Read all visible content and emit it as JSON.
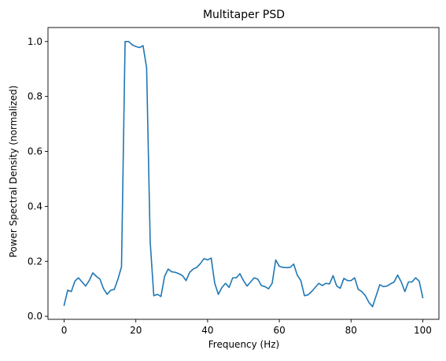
{
  "chart_data": {
    "type": "line",
    "title": "Multitaper PSD",
    "xlabel": "Frequency (Hz)",
    "ylabel": "Power Spectral Density (normalized)",
    "xlim": [
      -4.5,
      104.5
    ],
    "ylim": [
      -0.011,
      1.051
    ],
    "xticks": [
      0,
      20,
      40,
      60,
      80,
      100
    ],
    "xtick_labels": [
      "0",
      "20",
      "40",
      "60",
      "80",
      "100"
    ],
    "yticks": [
      0.0,
      0.2,
      0.4,
      0.6,
      0.8,
      1.0
    ],
    "ytick_labels": [
      "0.0",
      "0.2",
      "0.4",
      "0.6",
      "0.8",
      "1.0"
    ],
    "grid": false,
    "series": [
      {
        "color": "#1f77b4",
        "x": [
          0,
          1,
          2,
          3,
          4,
          5,
          6,
          7,
          8,
          9,
          10,
          11,
          12,
          13,
          14,
          15,
          16,
          17,
          18,
          19,
          20,
          21,
          22,
          23,
          24,
          25,
          26,
          27,
          28,
          29,
          30,
          31,
          32,
          33,
          34,
          35,
          36,
          37,
          38,
          39,
          40,
          41,
          42,
          43,
          44,
          45,
          46,
          47,
          48,
          49,
          50,
          51,
          52,
          53,
          54,
          55,
          56,
          57,
          58,
          59,
          60,
          61,
          62,
          63,
          64,
          65,
          66,
          67,
          68,
          69,
          70,
          71,
          72,
          73,
          74,
          75,
          76,
          77,
          78,
          79,
          80,
          81,
          82,
          83,
          84,
          85,
          86,
          87,
          88,
          89,
          90,
          91,
          92,
          93,
          94,
          95,
          96,
          97,
          98,
          99,
          100
        ],
        "y": [
          0.04,
          0.095,
          0.09,
          0.128,
          0.14,
          0.125,
          0.11,
          0.13,
          0.158,
          0.145,
          0.135,
          0.1,
          0.08,
          0.095,
          0.098,
          0.135,
          0.18,
          1.0,
          1.0,
          0.988,
          0.982,
          0.978,
          0.985,
          0.905,
          0.27,
          0.075,
          0.08,
          0.072,
          0.145,
          0.172,
          0.162,
          0.16,
          0.155,
          0.148,
          0.13,
          0.16,
          0.172,
          0.178,
          0.192,
          0.21,
          0.205,
          0.212,
          0.12,
          0.08,
          0.105,
          0.12,
          0.105,
          0.14,
          0.14,
          0.155,
          0.13,
          0.11,
          0.125,
          0.14,
          0.135,
          0.112,
          0.108,
          0.1,
          0.12,
          0.205,
          0.182,
          0.178,
          0.177,
          0.178,
          0.19,
          0.15,
          0.13,
          0.075,
          0.078,
          0.09,
          0.105,
          0.12,
          0.112,
          0.12,
          0.118,
          0.148,
          0.11,
          0.102,
          0.138,
          0.13,
          0.13,
          0.14,
          0.098,
          0.09,
          0.075,
          0.05,
          0.035,
          0.075,
          0.115,
          0.108,
          0.11,
          0.118,
          0.125,
          0.15,
          0.125,
          0.09,
          0.125,
          0.125,
          0.14,
          0.128,
          0.068
        ]
      }
    ]
  }
}
